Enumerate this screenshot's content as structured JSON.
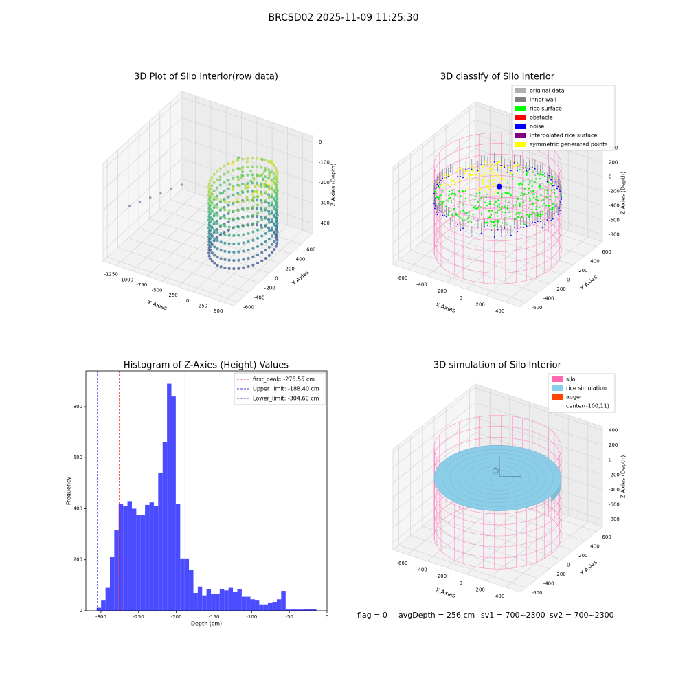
{
  "title": "BRCSD02 2025-11-09 11:25:30",
  "chart_data": [
    {
      "type": "scatter3d",
      "title": "3D Plot of Silo Interior(row data)",
      "xlabel": "X Axies",
      "ylabel": "Y Axies",
      "zlabel": "Z Axies (Depth)",
      "xlim": [
        -1470,
        660
      ],
      "xticks": [
        -1250,
        -1000,
        -750,
        -500,
        -250,
        0,
        250,
        500
      ],
      "ylim": [
        -680,
        820
      ],
      "yticks": [
        -600,
        -400,
        -200,
        0,
        200,
        400,
        600
      ],
      "zlim": [
        -450,
        30
      ],
      "zticks": [
        -400,
        -300,
        -200,
        -100,
        0
      ]
    },
    {
      "type": "scatter3d",
      "title": "3D classify of Silo Interior",
      "xlabel": "X Axies",
      "ylabel": "Y Axies",
      "zlabel": "Z Axies (Depth)",
      "xlim": [
        -750,
        550
      ],
      "xticks": [
        -600,
        -400,
        -200,
        0,
        200,
        400
      ],
      "ylim": [
        -700,
        700
      ],
      "yticks": [
        -600,
        -400,
        -200,
        0,
        200,
        400,
        600
      ],
      "zlim": [
        -900,
        450
      ],
      "zticks": [
        -800,
        -600,
        -400,
        -200,
        0,
        200,
        400
      ],
      "legend": [
        {
          "name": "original data",
          "color": "#b0b0b0"
        },
        {
          "name": "inner wall",
          "color": "#808080"
        },
        {
          "name": "rice surface",
          "color": "#00ff00"
        },
        {
          "name": "obstacle",
          "color": "#ff0000"
        },
        {
          "name": "noise",
          "color": "#0000ff"
        },
        {
          "name": "interpolated rice surface",
          "color": "#800080"
        },
        {
          "name": "symmetric generated points",
          "color": "#ffff00"
        }
      ]
    },
    {
      "type": "histogram",
      "title": "Histogram of Z-Axies (Height) Values",
      "xlabel": "Depth (cm)",
      "ylabel": "Frequency",
      "color": "#4b4bff",
      "bins": [
        -305.6,
        -299.8,
        -293.9,
        -288.1,
        -282.3,
        -276.5,
        -270.6,
        -264.8,
        -258.9,
        -253.1,
        -247.3,
        -241.5,
        -235.6,
        -229.8,
        -224.0,
        -218.1,
        -212.3,
        -206.5,
        -200.7,
        -194.8,
        -189.0,
        -183.2,
        -177.3,
        -171.5,
        -165.7,
        -159.9,
        -154.0,
        -148.2,
        -142.4,
        -136.5,
        -130.7,
        -124.9,
        -119.0,
        -113.2,
        -107.4,
        -101.6,
        -95.7,
        -89.9,
        -84.1,
        -78.3,
        -72.4,
        -66.6,
        -60.8,
        -54.9,
        -49.1,
        -43.3,
        -37.4,
        -31.6,
        -25.8,
        -19.9,
        -14.1
      ],
      "values": [
        12,
        40,
        90,
        210,
        315,
        420,
        410,
        430,
        400,
        375,
        375,
        415,
        425,
        412,
        540,
        660,
        890,
        840,
        420,
        205,
        205,
        160,
        70,
        95,
        60,
        85,
        65,
        65,
        85,
        80,
        90,
        75,
        85,
        55,
        55,
        45,
        40,
        25,
        25,
        30,
        35,
        45,
        78,
        5,
        5,
        5,
        5,
        8,
        8,
        8
      ],
      "xlim": [
        -320,
        0
      ],
      "xticks": [
        -300,
        -250,
        -200,
        -150,
        -100,
        -50,
        0
      ],
      "ylim": [
        0,
        940
      ],
      "yticks": [
        0,
        200,
        400,
        600,
        800
      ],
      "vlines": [
        {
          "label": "first_peak: -275.55 cm",
          "value": -275.55,
          "color": "#ff0000"
        },
        {
          "label": "Upper_limit: -188.40 cm",
          "value": -188.4,
          "color": "#0000cc"
        },
        {
          "label": "Lower_limit: -304.60 cm",
          "value": -304.6,
          "color": "#0000cc"
        }
      ]
    },
    {
      "type": "wireframe3d",
      "title": "3D simulation of Silo Interior",
      "xlabel": "X Axies",
      "ylabel": "Y Axies",
      "zlabel": "Z Axies (Depth)",
      "xlim": [
        -750,
        550
      ],
      "xticks": [
        -600,
        -400,
        -200,
        0,
        200,
        400
      ],
      "ylim": [
        -700,
        700
      ],
      "yticks": [
        -600,
        -400,
        -200,
        0,
        200,
        400,
        600
      ],
      "zlim": [
        -900,
        450
      ],
      "zticks": [
        -800,
        -600,
        -400,
        -200,
        0,
        200,
        400
      ],
      "legend": [
        {
          "name": "silo",
          "color": "#ff69b4"
        },
        {
          "name": "rice simulation",
          "color": "#87ceeb"
        },
        {
          "name": "auger",
          "color": "#ff4500"
        },
        {
          "name": "center(-100,11)",
          "color": "#ffffff"
        }
      ]
    }
  ],
  "footer": [
    "flag = 0",
    "avgDepth = 256 cm",
    "sv1 = 700~2300",
    "sv2 = 700~2300"
  ]
}
